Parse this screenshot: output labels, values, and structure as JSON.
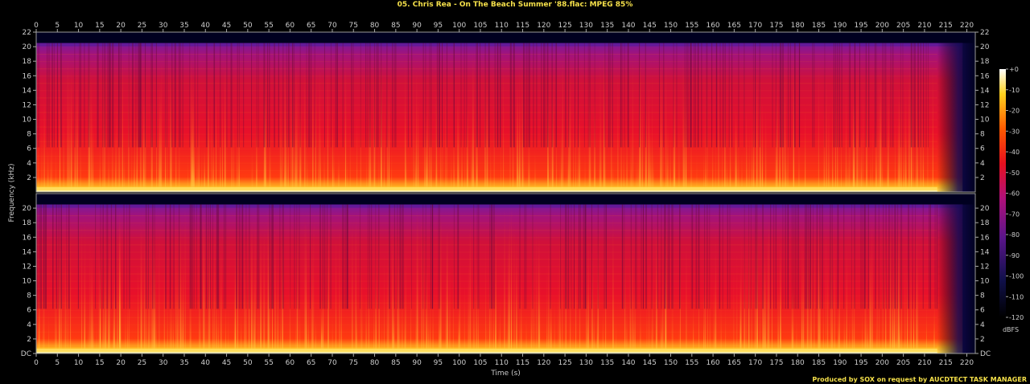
{
  "chart_data": {
    "type": "heatmap",
    "title": "05. Chris Rea - On The Beach Summer '88.flac: MPEG 85%",
    "xlabel": "Time (s)",
    "ylabel": "Frequency (kHz)",
    "xlim": [
      0,
      222
    ],
    "ylim": [
      0,
      22
    ],
    "x_ticks": [
      0,
      5,
      10,
      15,
      20,
      25,
      30,
      35,
      40,
      45,
      50,
      55,
      60,
      65,
      70,
      75,
      80,
      85,
      90,
      95,
      100,
      105,
      110,
      115,
      120,
      125,
      130,
      135,
      140,
      145,
      150,
      155,
      160,
      165,
      170,
      175,
      180,
      185,
      190,
      195,
      200,
      205,
      210,
      215,
      220
    ],
    "channels": [
      {
        "y_ticks": [
          "2",
          "4",
          "6",
          "8",
          "10",
          "12",
          "14",
          "16",
          "18",
          "20",
          "22"
        ]
      },
      {
        "y_ticks": [
          "DC",
          "2",
          "4",
          "6",
          "8",
          "10",
          "12",
          "14",
          "16",
          "18",
          "20"
        ]
      }
    ],
    "cutoff_khz": 20.5,
    "fade_out_start_s": 213,
    "colorbar": {
      "label": "dBFS",
      "ticks": [
        "+0",
        "-10",
        "-20",
        "-30",
        "-40",
        "-50",
        "-60",
        "-70",
        "-80",
        "-90",
        "-100",
        "-110",
        "-120"
      ],
      "range_db": [
        -120,
        0
      ]
    },
    "footer": "Produced by SOX on request by AUCDTECT TASK MANAGER"
  }
}
